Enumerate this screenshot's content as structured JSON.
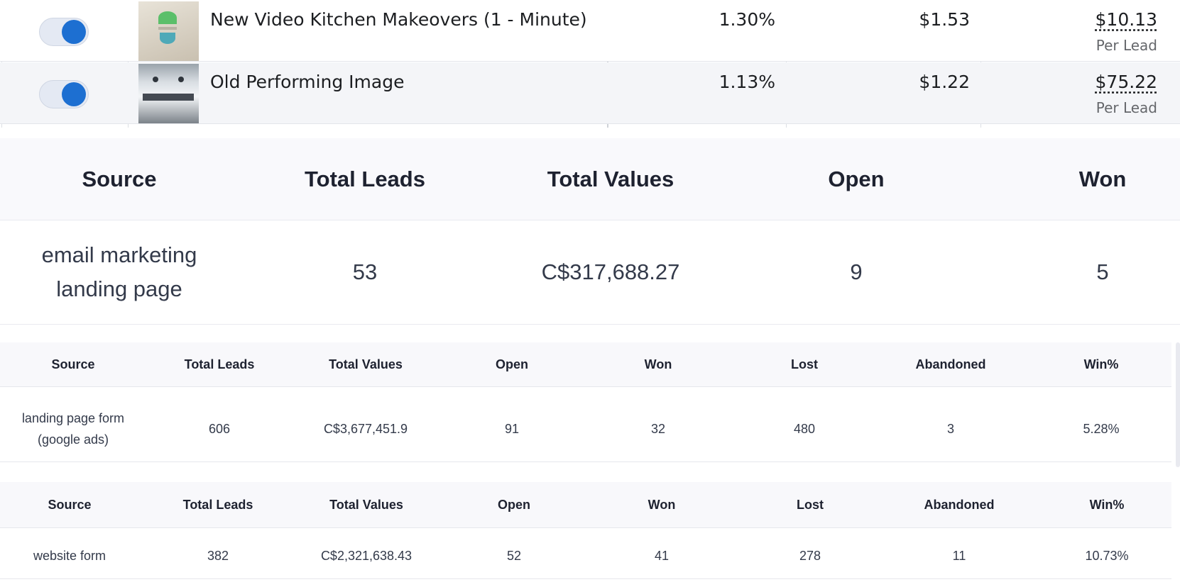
{
  "ads_table": {
    "rows": [
      {
        "enabled": true,
        "thumbnail": "logo-image",
        "name": "New Video Kitchen Makeovers (1 - Minute)",
        "ctr": "1.30%",
        "cpc": "$1.53",
        "cost": "$10.13",
        "cost_unit": "Per Lead"
      },
      {
        "enabled": true,
        "thumbnail": "kitchen-image",
        "name": "Old Performing Image",
        "ctr": "1.13%",
        "cpc": "$1.22",
        "cost": "$75.22",
        "cost_unit": "Per Lead"
      }
    ],
    "colors": {
      "toggle_on": "#1d6fd1",
      "toggle_track": "#e4e9f3",
      "row_alt": "#f4f5f8"
    }
  },
  "summary_table": {
    "headers": [
      "Source",
      "Total Leads",
      "Total Values",
      "Open",
      "Won"
    ],
    "row": {
      "source_line1": "email marketing",
      "source_line2": "landing page",
      "total_leads": "53",
      "total_values": "C$317,688.27",
      "open": "9",
      "won": "5"
    }
  },
  "table_google": {
    "headers": [
      "Source",
      "Total Leads",
      "Total Values",
      "Open",
      "Won",
      "Lost",
      "Abandoned",
      "Win%"
    ],
    "row": {
      "source_line1": "landing page form",
      "source_line2": "(google ads)",
      "total_leads": "606",
      "total_values": "C$3,677,451.9",
      "open": "91",
      "won": "32",
      "lost": "480",
      "abandoned": "3",
      "win_pct": "5.28%"
    }
  },
  "table_website": {
    "headers": [
      "Source",
      "Total Leads",
      "Total Values",
      "Open",
      "Won",
      "Lost",
      "Abandoned",
      "Win%"
    ],
    "row": {
      "source": "website form",
      "total_leads": "382",
      "total_values": "C$2,321,638.43",
      "open": "52",
      "won": "41",
      "lost": "278",
      "abandoned": "11",
      "win_pct": "10.73%"
    }
  }
}
